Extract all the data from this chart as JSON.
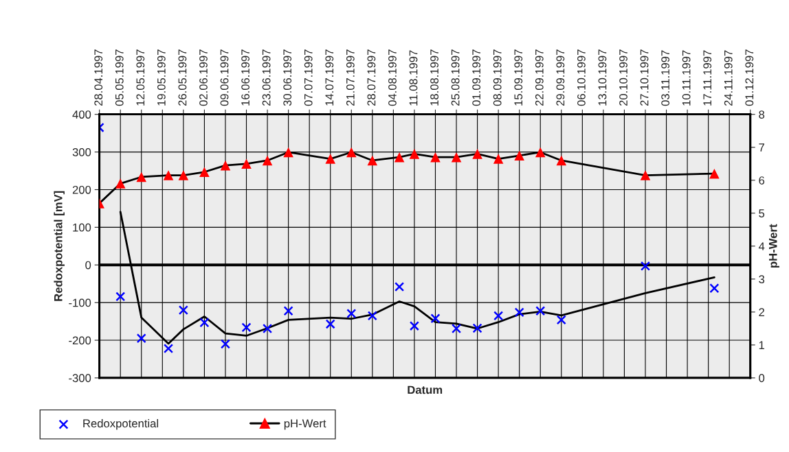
{
  "chart_data": {
    "type": "line",
    "xlabel": "Datum",
    "ylabel": "Redoxpotential [mV]",
    "y2label": "pH-Wert",
    "xlim": [
      "1997-04-28",
      "1997-12-01"
    ],
    "xticks": [
      {
        "value": "1997-04-28",
        "label": "28.04.1997"
      },
      {
        "value": "1997-05-05",
        "label": "05.05.1997"
      },
      {
        "value": "1997-05-12",
        "label": "12.05.1997"
      },
      {
        "value": "1997-05-19",
        "label": "19.05.1997"
      },
      {
        "value": "1997-05-26",
        "label": "26.05.1997"
      },
      {
        "value": "1997-06-02",
        "label": "02.06.1997"
      },
      {
        "value": "1997-06-09",
        "label": "09.06.1997"
      },
      {
        "value": "1997-06-16",
        "label": "16.06.1997"
      },
      {
        "value": "1997-06-23",
        "label": "23.06.1997"
      },
      {
        "value": "1997-06-30",
        "label": "30.06.1997"
      },
      {
        "value": "1997-07-07",
        "label": "07.07.1997"
      },
      {
        "value": "1997-07-14",
        "label": "14.07.1997"
      },
      {
        "value": "1997-07-21",
        "label": "21.07.1997"
      },
      {
        "value": "1997-07-28",
        "label": "28.07.1997"
      },
      {
        "value": "1997-08-04",
        "label": "04.08.1997"
      },
      {
        "value": "1997-08-11",
        "label": "11.08.1997"
      },
      {
        "value": "1997-08-18",
        "label": "18.08.1997"
      },
      {
        "value": "1997-08-25",
        "label": "25.08.1997"
      },
      {
        "value": "1997-09-01",
        "label": "01.09.1997"
      },
      {
        "value": "1997-09-08",
        "label": "08.09.1997"
      },
      {
        "value": "1997-09-15",
        "label": "15.09.1997"
      },
      {
        "value": "1997-09-22",
        "label": "22.09.1997"
      },
      {
        "value": "1997-09-29",
        "label": "29.09.1997"
      },
      {
        "value": "1997-10-06",
        "label": "06.10.1997"
      },
      {
        "value": "1997-10-13",
        "label": "13.10.1997"
      },
      {
        "value": "1997-10-20",
        "label": "20.10.1997"
      },
      {
        "value": "1997-10-27",
        "label": "27.10.1997"
      },
      {
        "value": "1997-11-03",
        "label": "03.11.1997"
      },
      {
        "value": "1997-11-10",
        "label": "10.11.1997"
      },
      {
        "value": "1997-11-17",
        "label": "17.11.1997"
      },
      {
        "value": "1997-11-24",
        "label": "24.11.1997"
      },
      {
        "value": "1997-12-01",
        "label": "01.12.1997"
      }
    ],
    "ylim": [
      -300,
      400
    ],
    "yticks": [
      -300,
      -200,
      -100,
      0,
      100,
      200,
      300,
      400
    ],
    "y2lim": [
      0,
      8
    ],
    "y2ticks": [
      0,
      1,
      2,
      3,
      4,
      5,
      6,
      7,
      8
    ],
    "grid": true,
    "legend": "bottom",
    "ref_lines": [
      {
        "axis": "y",
        "value": 0,
        "color": "#000000"
      }
    ],
    "x": [
      "1997-04-28",
      "1997-05-05",
      "1997-05-12",
      "1997-05-21",
      "1997-05-26",
      "1997-06-02",
      "1997-06-09",
      "1997-06-16",
      "1997-06-23",
      "1997-06-30",
      "1997-07-14",
      "1997-07-21",
      "1997-07-28",
      "1997-08-06",
      "1997-08-11",
      "1997-08-18",
      "1997-08-25",
      "1997-09-01",
      "1997-09-08",
      "1997-09-15",
      "1997-09-22",
      "1997-09-29",
      "1997-10-27",
      "1997-11-19"
    ],
    "series": [
      {
        "name": "Redoxpotential",
        "type": "scatter",
        "marker": "cross",
        "color": "#0000ff",
        "values": [
          365,
          -84,
          -195,
          -222,
          -120,
          -153,
          -210,
          -166,
          -169,
          -122,
          -157,
          -129,
          -135,
          -58,
          -162,
          -142,
          -169,
          -168,
          -135,
          -126,
          -122,
          -146,
          -3,
          -62
        ]
      },
      {
        "marker": "none",
        "color": "#000000",
        "x": [
          "1997-05-05",
          "1997-05-12",
          "1997-05-21",
          "1997-05-26",
          "1997-06-02",
          "1997-06-09",
          "1997-06-16",
          "1997-06-23",
          "1997-06-30",
          "1997-07-14",
          "1997-07-21",
          "1997-07-28",
          "1997-08-06",
          "1997-08-11",
          "1997-08-18",
          "1997-08-25",
          "1997-09-01",
          "1997-09-08",
          "1997-09-15",
          "1997-09-22",
          "1997-09-29",
          "1997-10-27",
          "1997-11-19"
        ],
        "values": [
          141,
          -140,
          -209,
          -171,
          -137,
          -182,
          -188,
          -168,
          -146,
          -140,
          -143,
          -132,
          -97,
          -110,
          -152,
          -156,
          -169,
          -152,
          -131,
          -124,
          -134,
          -75,
          -33
        ]
      },
      {
        "name": "pH-Wert",
        "axis": "y2",
        "marker": "triangle",
        "color": "#000000",
        "colors": [
          "#ff0000",
          "#ff0000",
          "#ff0000",
          "#ff0000",
          "#ff0000",
          "#ff0000",
          "#ff0000",
          "#ff0000",
          "#ff0000",
          "#ff0000",
          "#ff0000",
          "#ff0000",
          "#ff0000",
          "#ff0000",
          "#ff0000",
          "#ff0000",
          "#ff0000",
          "#ff0000",
          "#ff0000",
          "#ff0000",
          "#ff0000",
          "#ff0000",
          "#ff0000",
          "#ff0000"
        ],
        "values": [
          5.3,
          5.9,
          6.1,
          6.15,
          6.15,
          6.25,
          6.45,
          6.5,
          6.6,
          6.85,
          6.65,
          6.85,
          6.6,
          6.7,
          6.8,
          6.7,
          6.7,
          6.8,
          6.65,
          6.75,
          6.85,
          6.6,
          6.15,
          6.2
        ]
      }
    ]
  }
}
